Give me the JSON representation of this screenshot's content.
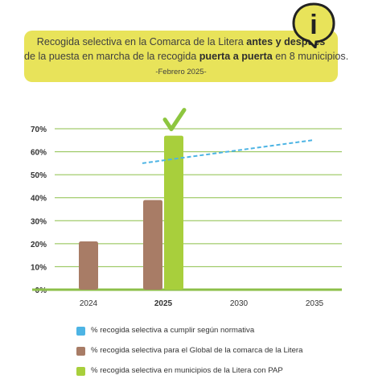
{
  "banner": {
    "line1_pre": "Recogida selectiva en la Comarca de la Litera ",
    "line1_bold": "antes y después",
    "line2_pre": "de la puesta en marcha de la recogida ",
    "line2_bold": "puerta a puerta",
    "line2_post": " en 8 municipios.",
    "line3": "-Febrero 2025-",
    "badge_icon": "info-icon",
    "badge_glyph": "i"
  },
  "colors": {
    "banner": "#e8e35a",
    "normativa": "#4db4e4",
    "global": "#a87c66",
    "pap": "#a8cf3c",
    "grid": "#8cbf49",
    "check": "#8dc63f"
  },
  "legend": [
    {
      "label": "% recogida selectiva a cumplir según normativa",
      "color": "#4db4e4"
    },
    {
      "label": "% recogida selectiva para el Global de la comarca de la Litera",
      "color": "#a87c66"
    },
    {
      "label": "% recogida selectiva en municipios de la Litera con PAP",
      "color": "#a8cf3c"
    }
  ],
  "chart_data": {
    "type": "bar",
    "categories": [
      "2024",
      "2025",
      "2030",
      "2035"
    ],
    "highlight_category": "2025",
    "ylim": [
      0,
      70
    ],
    "yticks": [
      0,
      10,
      20,
      30,
      40,
      50,
      60,
      70
    ],
    "ytick_labels": [
      "0%",
      "10%",
      "20%",
      "30%",
      "40%",
      "50%",
      "60%",
      "70%"
    ],
    "grid": true,
    "series": [
      {
        "name": "% recogida selectiva para el Global de la comarca de la Litera",
        "kind": "bar",
        "values": [
          21,
          39,
          null,
          null
        ]
      },
      {
        "name": "% recogida selectiva en municipios de la Litera con PAP",
        "kind": "bar",
        "values": [
          null,
          67,
          null,
          null
        ]
      },
      {
        "name": "% recogida selectiva a cumplir según normativa",
        "kind": "dashed-line",
        "points": [
          {
            "x": 2025,
            "y": 55
          },
          {
            "x": 2035,
            "y": 65
          }
        ]
      }
    ],
    "annotation": {
      "type": "checkmark",
      "category": "2025"
    }
  }
}
